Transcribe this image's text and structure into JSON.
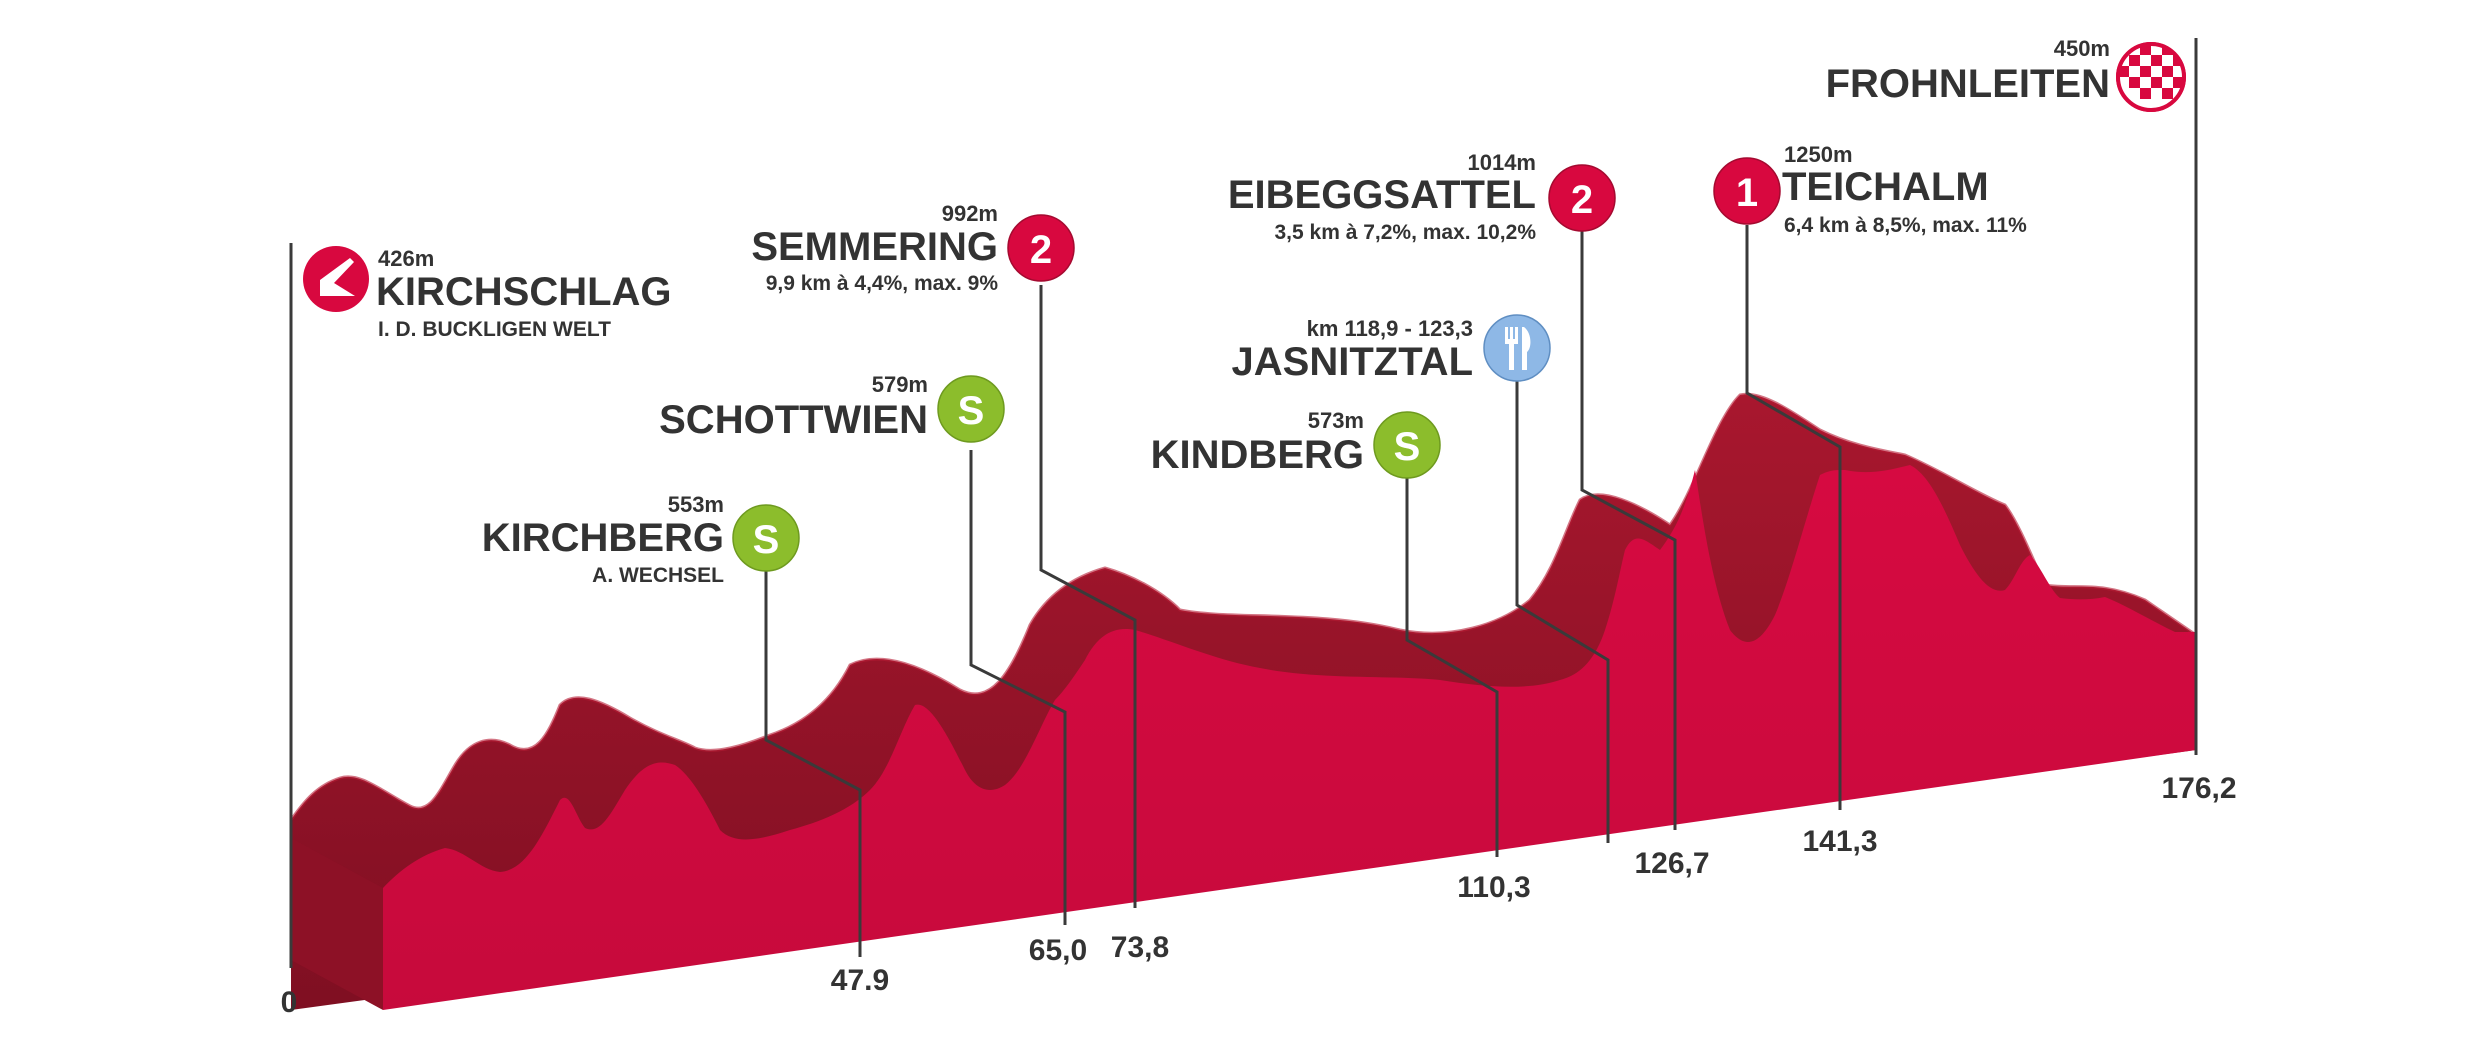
{
  "colors": {
    "profile_top": "#9c1429",
    "profile_front": "#cf0a3f",
    "profile_shade": "#7e0f22",
    "kom": "#d8083f",
    "sprint": "#8cbd2c",
    "feed": "#8eb8e6",
    "line": "#3a3a3a",
    "text": "#333333"
  },
  "start": {
    "name": "KIRCHSCHLAG",
    "subtitle": "I. D. BUCKLIGEN WELT",
    "altitude": "426m",
    "icon": "start-arrow-icon"
  },
  "finish": {
    "name": "FROHNLEITEN",
    "altitude": "450m",
    "icon": "finish-checkered-icon"
  },
  "points": [
    {
      "key": "kirchberg",
      "type": "sprint",
      "badge": "S",
      "name": "KIRCHBERG",
      "subtitle": "A. WECHSEL",
      "altitude": "553m"
    },
    {
      "key": "schottwien",
      "type": "sprint",
      "badge": "S",
      "name": "SCHOTTWIEN",
      "altitude": "579m"
    },
    {
      "key": "semmering",
      "type": "kom",
      "badge": "2",
      "name": "SEMMERING",
      "altitude": "992m",
      "climb": "9,9 km à 4,4%, max. 9%"
    },
    {
      "key": "kindberg",
      "type": "sprint",
      "badge": "S",
      "name": "KINDBERG",
      "altitude": "573m"
    },
    {
      "key": "jasnitztal",
      "type": "feed",
      "name": "JASNITZTAL",
      "altitude": "km 118,9 - 123,3",
      "icon": "fork-knife-icon"
    },
    {
      "key": "eibeggsattel",
      "type": "kom",
      "badge": "2",
      "name": "EIBEGGSATTEL",
      "altitude": "1014m",
      "climb": "3,5 km à 7,2%, max. 10,2%"
    },
    {
      "key": "teichalm",
      "type": "kom",
      "badge": "1",
      "name": "TEICHALM",
      "altitude": "1250m",
      "climb": "6,4 km à 8,5%, max. 11%"
    }
  ],
  "km_labels": [
    "0",
    "47.9",
    "65,0",
    "73,8",
    "110,3",
    "126,7",
    "141,3",
    "176,2"
  ]
}
